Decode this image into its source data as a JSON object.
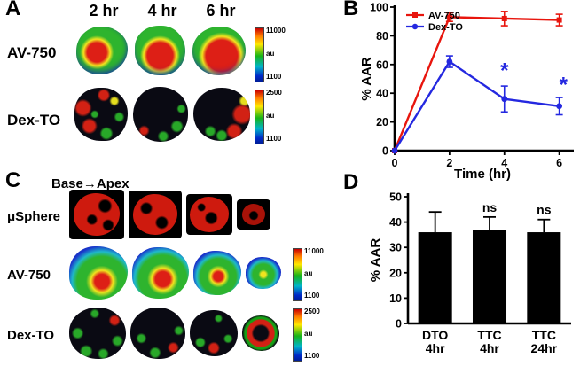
{
  "panels": {
    "a": {
      "label": "A",
      "time_headers": [
        "2 hr",
        "4 hr",
        "6 hr"
      ],
      "rows": [
        {
          "label": "AV-750",
          "colorbar": {
            "max": "11000",
            "unit": "au",
            "min": "1100"
          }
        },
        {
          "label": "Dex-TO",
          "colorbar": {
            "max": "2500",
            "unit": "au",
            "min": "1100"
          }
        }
      ]
    },
    "b": {
      "label": "B"
    },
    "c": {
      "label": "C",
      "direction_label": "Base→Apex",
      "rows": [
        {
          "label": "μSphere"
        },
        {
          "label": "AV-750",
          "colorbar": {
            "max": "11000",
            "unit": "au",
            "min": "1100"
          }
        },
        {
          "label": "Dex-TO",
          "colorbar": {
            "max": "2500",
            "unit": "au",
            "min": "1100"
          }
        }
      ]
    },
    "d": {
      "label": "D"
    }
  },
  "chart_data": [
    {
      "id": "panel-b",
      "type": "line",
      "xlabel": "Time (hr)",
      "ylabel": "% AAR",
      "xlim": [
        0,
        6.4
      ],
      "ylim": [
        0,
        100
      ],
      "xticks": [
        0,
        2,
        4,
        6
      ],
      "yticks": [
        0,
        20,
        40,
        60,
        80,
        100
      ],
      "x": [
        0,
        2,
        4,
        6
      ],
      "series": [
        {
          "name": "AV-750",
          "color": "#e8150d",
          "marker": "square",
          "values": [
            0,
            93,
            92,
            91
          ],
          "errors": [
            0,
            3,
            5,
            4
          ]
        },
        {
          "name": "Dex-TO",
          "color": "#2428e0",
          "marker": "circle",
          "values": [
            0,
            62,
            36,
            31
          ],
          "errors": [
            0,
            4,
            9,
            6
          ]
        }
      ],
      "annotations": [
        {
          "text": "*",
          "x": 4,
          "y": 51,
          "color": "#2428e0"
        },
        {
          "text": "*",
          "x": 6.15,
          "y": 41,
          "color": "#2428e0"
        }
      ],
      "legend_position": "top-left",
      "grid": false
    },
    {
      "id": "panel-d",
      "type": "bar",
      "ylabel": "% AAR",
      "ylim": [
        0,
        50
      ],
      "yticks": [
        0,
        10,
        20,
        30,
        40,
        50
      ],
      "categories": [
        "DTO\n4hr",
        "TTC\n4hr",
        "TTC\n24hr"
      ],
      "values": [
        36,
        37,
        36
      ],
      "errors": [
        8,
        5,
        5
      ],
      "bar_color": "#000000",
      "annotations": [
        "",
        "ns",
        "ns"
      ],
      "grid": false
    }
  ]
}
